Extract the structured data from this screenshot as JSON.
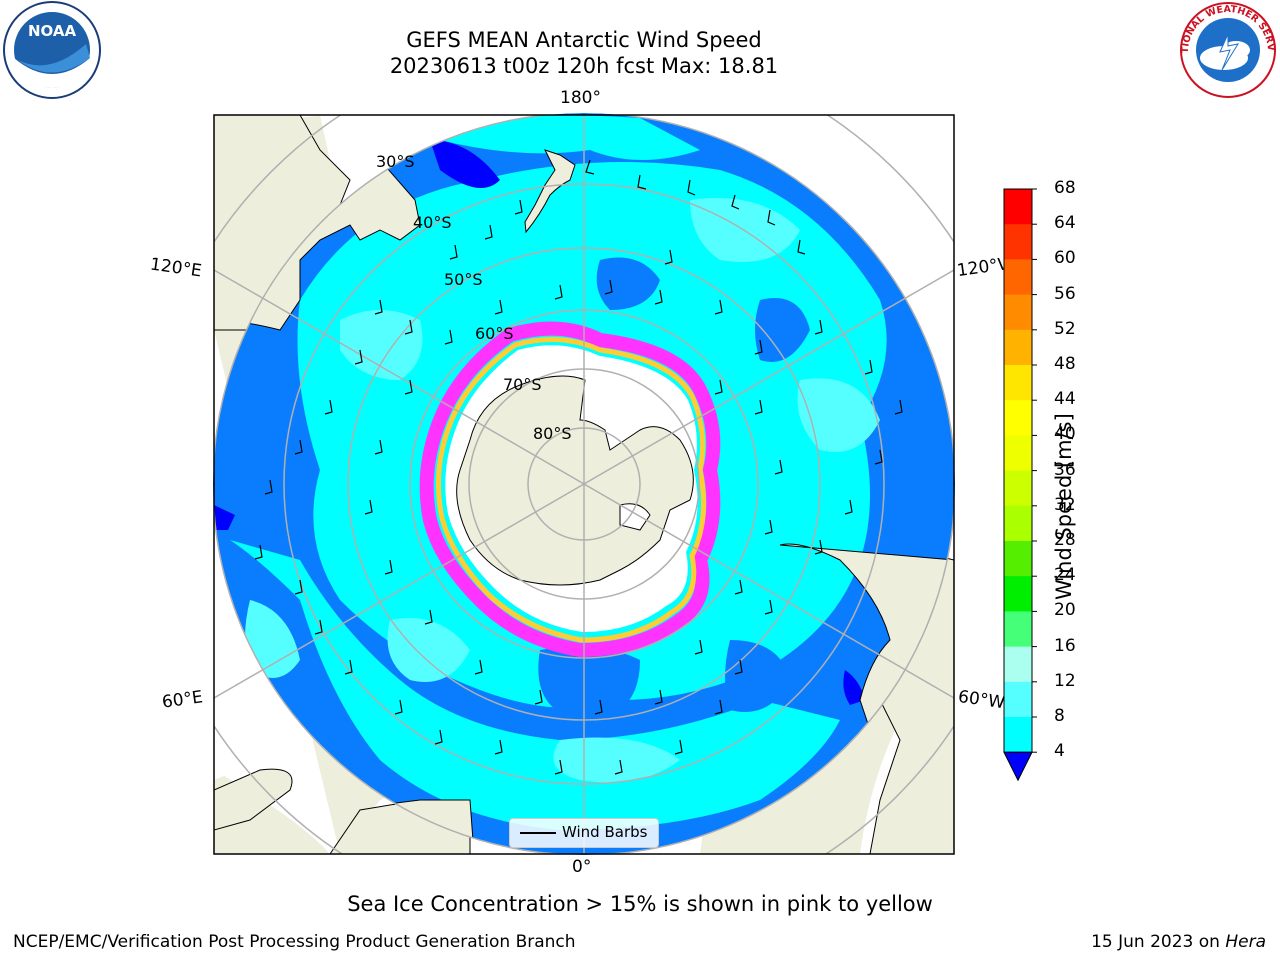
{
  "title": {
    "line1": "GEFS MEAN Antarctic Wind Speed",
    "line2": "20230613 t00z 120h fcst   Max: 18.81"
  },
  "map": {
    "lon_labels": {
      "top": "180°",
      "bottom": "0°",
      "left_upper": "120°E",
      "left_lower": "60°E",
      "right_upper": "120°W",
      "right_lower": "60°W"
    },
    "lat_labels": [
      "30°S",
      "40°S",
      "50°S",
      "60°S",
      "70°S",
      "80°S"
    ],
    "legend_label": "Wind Barbs",
    "colors": {
      "land": "#eeeedd",
      "ocean_4_8": "#0a7dff",
      "ocean_8_12": "#00ffff",
      "ocean_12_16": "#55ffff",
      "ocean_lt4": "#0000ff",
      "ice_edge": "#ff33ff",
      "ice_inner": "#ffcc33"
    }
  },
  "colorbar": {
    "title": "Wind Speed [m/s]",
    "ticks": [
      "68",
      "64",
      "60",
      "56",
      "52",
      "48",
      "44",
      "40",
      "36",
      "32",
      "28",
      "24",
      "20",
      "16",
      "12",
      "8",
      "4"
    ],
    "bin_colors": [
      "#ff0000",
      "#ff3300",
      "#ff6600",
      "#ff8c00",
      "#ffb300",
      "#ffe600",
      "#ffff00",
      "#eeff00",
      "#ccff00",
      "#aaff00",
      "#55ee00",
      "#00ee00",
      "#44ff77",
      "#aaffee",
      "#55ffff",
      "#00ffff",
      "#0a7dff"
    ],
    "extend_color": "#0000ff"
  },
  "caption": "Sea Ice Concentration > 15% is shown in pink to yellow",
  "footer": {
    "left": "NCEP/EMC/Verification Post Processing Product Generation Branch",
    "right_date": "15 Jun 2023 on ",
    "right_host": "Hera"
  },
  "logos": {
    "left": "NOAA",
    "right": "NATIONAL WEATHER SERVICE"
  }
}
